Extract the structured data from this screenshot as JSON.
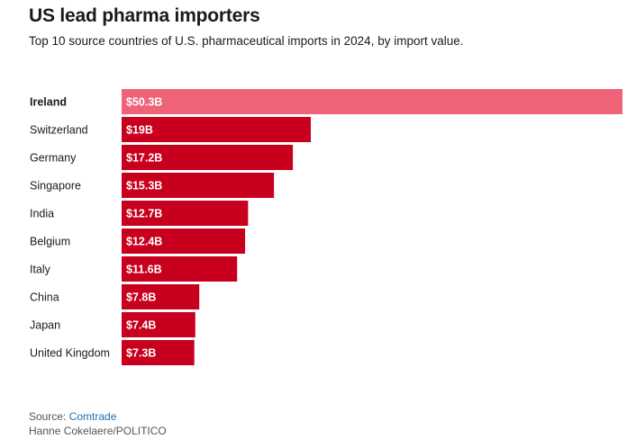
{
  "header": {
    "title": "US lead pharma importers",
    "subtitle": "Top 10 source countries of U.S. pharmaceutical imports in 2024, by import value."
  },
  "colors": {
    "highlight": "#ef6277",
    "bar": "#c8001e"
  },
  "chart_data": {
    "type": "bar",
    "orientation": "horizontal",
    "categories": [
      "Ireland",
      "Switzerland",
      "Germany",
      "Singapore",
      "India",
      "Belgium",
      "Italy",
      "China",
      "Japan",
      "United Kingdom"
    ],
    "values": [
      50.3,
      19,
      17.2,
      15.3,
      12.7,
      12.4,
      11.6,
      7.8,
      7.4,
      7.3
    ],
    "value_labels": [
      "$50.3B",
      "$19B",
      "$17.2B",
      "$15.3B",
      "$12.7B",
      "$12.4B",
      "$11.6B",
      "$7.8B",
      "$7.4B",
      "$7.3B"
    ],
    "highlight_category": "Ireland",
    "xlim": [
      0,
      50.3
    ],
    "grid": false,
    "legend": "none"
  },
  "footer": {
    "source_prefix": "Source: ",
    "source_link": "Comtrade",
    "credit": "Hanne Cokelaere/POLITICO"
  }
}
